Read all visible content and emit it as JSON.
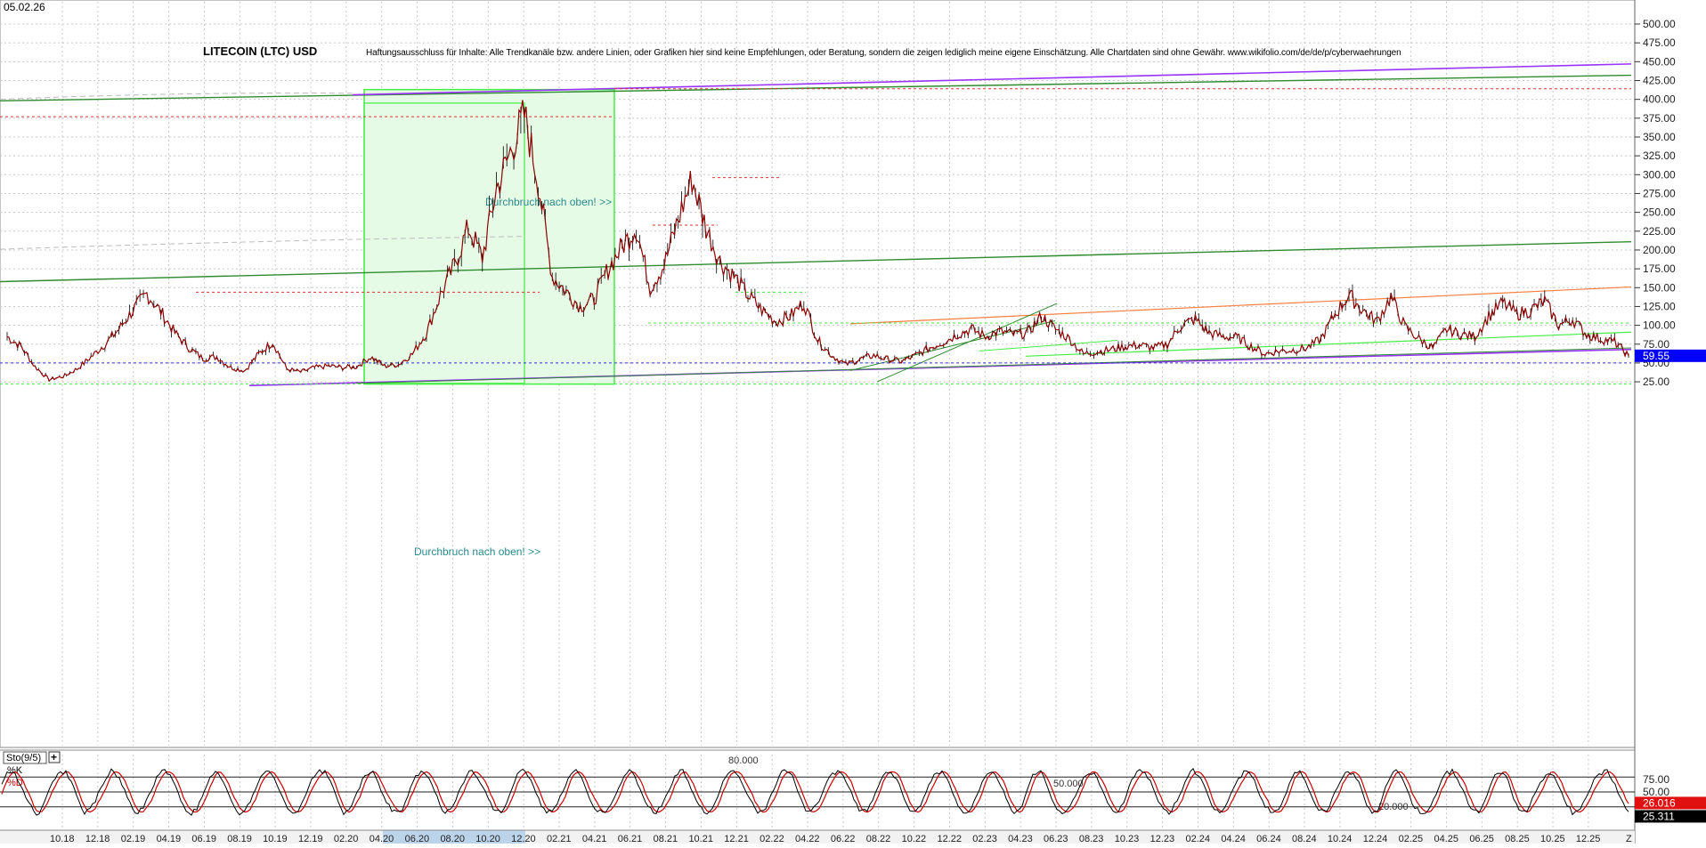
{
  "header": {
    "date": "05.02.26",
    "title": "LITECOIN (LTC) USD",
    "disclaimer": "Haftungsausschluss für Inhalte: Alle Trendkanäle bzw. andere Linien, oder Grafiken hier sind keine Empfehlungen, oder Beratung, sondern die zeigen lediglich meine eigene Einschätzung. Alle Chartdaten sind ohne Gewähr. www.wikifolio.com/de/de/p/cyberwaehrungen"
  },
  "colors": {
    "price": "#8b0000",
    "grid": "#c8c8c8",
    "green_line": "#2e8b2e",
    "light_green": "#44ee44",
    "purple": "#9933ff",
    "orange": "#ff7f3f",
    "red_dash": "#e03030",
    "blue_dash": "#3030e0",
    "current_price_box": "#0000ff",
    "stoch_k": "#000000",
    "stoch_d": "#cc0000",
    "k_box": "#e01010",
    "d_box": "#000000",
    "axis_highlight": "#bcd4ea"
  },
  "chart_data": [
    {
      "type": "line",
      "title": "LITECOIN (LTC) USD",
      "series": [],
      "x": [
        "10.18",
        "12.18",
        "02.19",
        "04.19",
        "06.19",
        "08.19",
        "10.19",
        "12.19",
        "02.20",
        "04.20",
        "06.20",
        "08.20",
        "10.20",
        "12.20",
        "02.21",
        "04.21",
        "06.21",
        "08.21",
        "10.21",
        "12.21",
        "02.22",
        "04.22",
        "06.22",
        "08.22",
        "10.22",
        "12.22",
        "02.23",
        "04.23",
        "06.23",
        "08.23",
        "10.23",
        "12.23",
        "02.24",
        "04.24",
        "06.24",
        "08.24",
        "10.24",
        "12.24",
        "02.25",
        "04.25",
        "06.25",
        "08.25",
        "10.25",
        "12.25"
      ],
      "y_ticks": [
        "25.00",
        "50.00",
        "75.00",
        "100.00",
        "125.00",
        "150.00",
        "175.00",
        "200.00",
        "225.00",
        "250.00",
        "275.00",
        "300.00",
        "325.00",
        "350.00",
        "375.00",
        "400.00",
        "425.00",
        "450.00",
        "475.00",
        "500.00"
      ],
      "ylim": [
        10,
        515
      ],
      "grid": true,
      "price_path": [
        [
          "10.18",
          85
        ],
        [
          "11.18",
          72
        ],
        [
          "12.18",
          45
        ],
        [
          "12.18b",
          28
        ],
        [
          "01.19",
          32
        ],
        [
          "02.19",
          42
        ],
        [
          "03.19",
          58
        ],
        [
          "04.19",
          75
        ],
        [
          "05.19",
          95
        ],
        [
          "06.19",
          120
        ],
        [
          "06.19b",
          142
        ],
        [
          "07.19",
          118
        ],
        [
          "08.19",
          90
        ],
        [
          "09.19",
          70
        ],
        [
          "10.19",
          56
        ],
        [
          "11.19",
          58
        ],
        [
          "12.19",
          44
        ],
        [
          "01.20",
          40
        ],
        [
          "02.20",
          62
        ],
        [
          "02.20b",
          78
        ],
        [
          "03.20",
          42
        ],
        [
          "03.20b",
          38
        ],
        [
          "04.20",
          44
        ],
        [
          "05.20",
          46
        ],
        [
          "06.20",
          44
        ],
        [
          "07.20",
          45
        ],
        [
          "08.20",
          58
        ],
        [
          "09.20",
          46
        ],
        [
          "10.20",
          48
        ],
        [
          "11.20",
          62
        ],
        [
          "12.20",
          90
        ],
        [
          "01.21",
          140
        ],
        [
          "02.21",
          180
        ],
        [
          "02.21b",
          230
        ],
        [
          "03.21",
          190
        ],
        [
          "04.21",
          280
        ],
        [
          "05.21",
          330
        ],
        [
          "05.21b",
          380
        ],
        [
          "05.21c",
          290
        ],
        [
          "06.21",
          165
        ],
        [
          "06.21b",
          145
        ],
        [
          "07.21",
          125
        ],
        [
          "07.21b",
          135
        ],
        [
          "08.21",
          175
        ],
        [
          "09.21",
          205
        ],
        [
          "09.21b",
          230
        ],
        [
          "09.21c",
          150
        ],
        [
          "10.21",
          180
        ],
        [
          "11.21",
          240
        ],
        [
          "11.21b",
          295
        ],
        [
          "11.21c",
          230
        ],
        [
          "12.21",
          185
        ],
        [
          "12.21b",
          165
        ],
        [
          "01.22",
          140
        ],
        [
          "02.22",
          120
        ],
        [
          "03.22",
          105
        ],
        [
          "04.22",
          112
        ],
        [
          "04.22b",
          130
        ],
        [
          "05.22",
          80
        ],
        [
          "06.22",
          60
        ],
        [
          "06.22b",
          48
        ],
        [
          "07.22",
          55
        ],
        [
          "08.22",
          60
        ],
        [
          "09.22",
          55
        ],
        [
          "10.22",
          52
        ],
        [
          "11.22",
          60
        ],
        [
          "12.22",
          70
        ],
        [
          "12.22b",
          78
        ],
        [
          "01.23",
          88
        ],
        [
          "02.23",
          95
        ],
        [
          "03.23",
          85
        ],
        [
          "04.23",
          92
        ],
        [
          "05.23",
          88
        ],
        [
          "06.23",
          90
        ],
        [
          "06.23b",
          112
        ],
        [
          "07.23",
          95
        ],
        [
          "08.23",
          82
        ],
        [
          "08.23b",
          62
        ],
        [
          "09.23",
          65
        ],
        [
          "10.23",
          68
        ],
        [
          "11.23",
          72
        ],
        [
          "12.23",
          74
        ],
        [
          "01.24",
          70
        ],
        [
          "02.24",
          75
        ],
        [
          "03.24",
          100
        ],
        [
          "03.24b",
          108
        ],
        [
          "04.24",
          90
        ],
        [
          "05.24",
          85
        ],
        [
          "06.24",
          84
        ],
        [
          "07.24",
          72
        ],
        [
          "08.24",
          62
        ],
        [
          "08.24b",
          66
        ],
        [
          "09.24",
          67
        ],
        [
          "10.24",
          70
        ],
        [
          "11.24",
          82
        ],
        [
          "12.24",
          115
        ],
        [
          "12.24b",
          140
        ],
        [
          "01.25",
          120
        ],
        [
          "02.25",
          105
        ],
        [
          "02.25b",
          138
        ],
        [
          "03.25",
          98
        ],
        [
          "04.25",
          82
        ],
        [
          "04.25b",
          70
        ],
        [
          "05.25",
          95
        ],
        [
          "06.25",
          88
        ],
        [
          "07.25",
          85
        ],
        [
          "08.25",
          112
        ],
        [
          "08.25b",
          130
        ],
        [
          "09.25",
          115
        ],
        [
          "10.25",
          120
        ],
        [
          "10.25b",
          132
        ],
        [
          "11.25",
          100
        ],
        [
          "11.25b",
          108
        ],
        [
          "12.25",
          88
        ],
        [
          "12.25b",
          82
        ],
        [
          "01.26",
          78
        ],
        [
          "02.26",
          59.55
        ]
      ],
      "current_price": "59.55",
      "annotations": [
        "Durchbruch nach oben! >>",
        "Durchbruch nach oben! >>"
      ]
    },
    {
      "type": "line",
      "title": "Sto(9/5)",
      "series": [
        {
          "name": "%K",
          "values": []
        },
        {
          "name": "%D",
          "values": []
        }
      ],
      "y_ticks": [
        "25.00",
        "50.00",
        "75.00"
      ],
      "ylim": [
        0,
        100
      ],
      "levels": [
        "80.000",
        "50.000",
        "20.000"
      ],
      "current_k": "26.016",
      "current_d": "25.311"
    }
  ],
  "indicator": {
    "name": "Sto(9/5)",
    "toggle": "+",
    "k_label": "%K",
    "d_label": "%D"
  },
  "x_axis": {
    "end_marker": "Z"
  }
}
